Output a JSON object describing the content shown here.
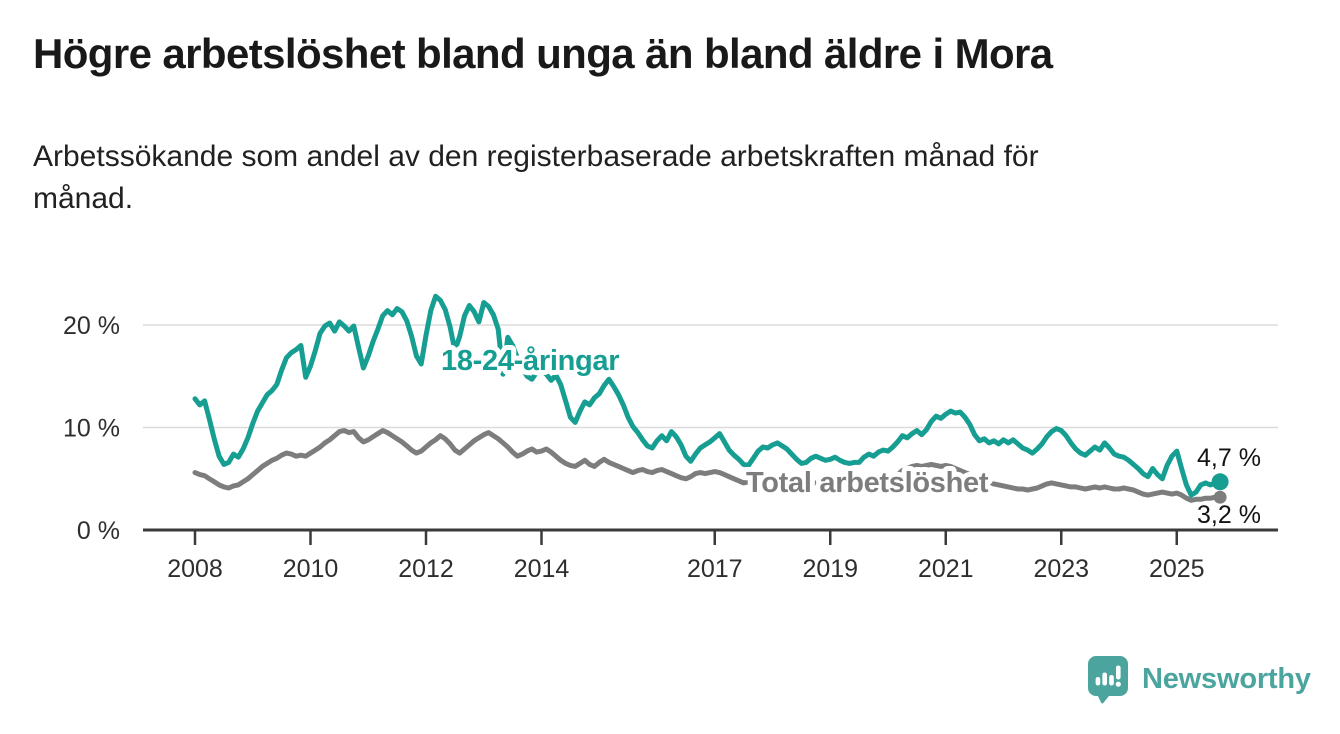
{
  "page": {
    "title": "Högre arbetslöshet bland unga än bland äldre i Mora",
    "subtitle_lines": [
      "Arbetssökande som andel av den registerbaserade arbetskraften månad för",
      "månad."
    ]
  },
  "chart_data": {
    "type": "line",
    "title": "Högre arbetslöshet bland unga än bland äldre i Mora",
    "subtitle": "Arbetssökande som andel av den registerbaserade arbetskraften månad för månad.",
    "unit": "%",
    "grid": true,
    "legend_position": "inline-labels",
    "x_axis": {
      "label": "",
      "range_years": [
        2007.1,
        2026.7
      ],
      "ticks": [
        {
          "label": "2008",
          "year": 2008
        },
        {
          "label": "2010",
          "year": 2010
        },
        {
          "label": "2012",
          "year": 2012
        },
        {
          "label": "2014",
          "year": 2014
        },
        {
          "label": "2017",
          "year": 2017
        },
        {
          "label": "2019",
          "year": 2019
        },
        {
          "label": "2021",
          "year": 2021
        },
        {
          "label": "2023",
          "year": 2023
        },
        {
          "label": "2025",
          "year": 2025
        }
      ]
    },
    "y_axis": {
      "label": "",
      "range": [
        0,
        23.5
      ],
      "ticks": [
        {
          "label": "0 %",
          "value": 0
        },
        {
          "label": "10 %",
          "value": 10
        },
        {
          "label": "20 %",
          "value": 20
        }
      ]
    },
    "series": [
      {
        "name": "18-24-åringar",
        "color": "#179e92",
        "start_year": 2008,
        "frequency": "monthly",
        "end_label": "4,7 %",
        "end_value": 4.7,
        "values": [
          12.8,
          12.2,
          12.6,
          10.8,
          8.9,
          7.2,
          6.4,
          6.6,
          7.4,
          7.1,
          7.9,
          9.0,
          10.4,
          11.6,
          12.4,
          13.2,
          13.6,
          14.2,
          15.6,
          16.8,
          17.3,
          17.6,
          18.0,
          14.9,
          16.0,
          17.5,
          19.2,
          19.9,
          20.2,
          19.4,
          20.3,
          19.9,
          19.4,
          19.9,
          17.8,
          15.8,
          17.0,
          18.4,
          19.6,
          20.9,
          21.4,
          21.0,
          21.6,
          21.3,
          20.4,
          18.9,
          17.0,
          16.2,
          19.0,
          21.4,
          22.8,
          22.4,
          21.5,
          19.8,
          17.5,
          18.9,
          20.9,
          21.9,
          21.3,
          20.3,
          22.2,
          21.8,
          21.0,
          19.6,
          15.2,
          18.8,
          18.0,
          16.8,
          15.8,
          15.0,
          14.7,
          15.4,
          15.6,
          15.2,
          14.6,
          15.1,
          14.2,
          12.6,
          11.0,
          10.5,
          11.6,
          12.5,
          12.2,
          12.9,
          13.3,
          14.1,
          14.7,
          14.0,
          13.2,
          12.2,
          11.0,
          10.1,
          9.5,
          8.8,
          8.2,
          8.0,
          8.7,
          9.2,
          8.7,
          9.6,
          9.1,
          8.3,
          7.2,
          6.7,
          7.4,
          8.0,
          8.3,
          8.6,
          9.0,
          9.4,
          8.6,
          7.8,
          7.3,
          6.9,
          6.4,
          6.3,
          7.0,
          7.7,
          8.1,
          8.0,
          8.3,
          8.5,
          8.2,
          7.9,
          7.4,
          6.9,
          6.5,
          6.6,
          7.0,
          7.2,
          7.0,
          6.8,
          6.9,
          7.1,
          6.8,
          6.6,
          6.5,
          6.6,
          6.6,
          7.1,
          7.4,
          7.2,
          7.6,
          7.8,
          7.7,
          8.1,
          8.6,
          9.2,
          9.0,
          9.4,
          9.7,
          9.3,
          9.8,
          10.6,
          11.1,
          10.9,
          11.3,
          11.6,
          11.4,
          11.5,
          11.0,
          10.3,
          9.3,
          8.7,
          8.9,
          8.5,
          8.7,
          8.4,
          8.8,
          8.5,
          8.8,
          8.4,
          8.0,
          7.8,
          7.5,
          7.9,
          8.4,
          9.1,
          9.6,
          9.9,
          9.7,
          9.2,
          8.5,
          7.9,
          7.5,
          7.3,
          7.7,
          8.1,
          7.8,
          8.5,
          8.0,
          7.4,
          7.2,
          7.1,
          6.8,
          6.4,
          6.0,
          5.5,
          5.2,
          6.0,
          5.4,
          5.0,
          6.3,
          7.2,
          7.7,
          6.0,
          4.4,
          3.4,
          3.7,
          4.4,
          4.6,
          4.4,
          4.6,
          4.7
        ]
      },
      {
        "name": "Total arbetslöshet",
        "color": "#7d7d7d",
        "start_year": 2008,
        "frequency": "monthly",
        "end_label": "3,2 %",
        "end_value": 3.2,
        "values": [
          5.6,
          5.4,
          5.3,
          5.0,
          4.7,
          4.4,
          4.2,
          4.1,
          4.3,
          4.4,
          4.7,
          5.0,
          5.4,
          5.8,
          6.2,
          6.5,
          6.8,
          7.0,
          7.3,
          7.5,
          7.4,
          7.2,
          7.3,
          7.2,
          7.5,
          7.8,
          8.1,
          8.5,
          8.8,
          9.2,
          9.6,
          9.7,
          9.5,
          9.6,
          9.0,
          8.6,
          8.8,
          9.1,
          9.4,
          9.7,
          9.5,
          9.2,
          8.9,
          8.6,
          8.2,
          7.8,
          7.5,
          7.7,
          8.1,
          8.5,
          8.8,
          9.2,
          8.9,
          8.4,
          7.8,
          7.5,
          7.9,
          8.3,
          8.7,
          9.0,
          9.3,
          9.5,
          9.2,
          8.9,
          8.5,
          8.1,
          7.6,
          7.2,
          7.4,
          7.7,
          7.9,
          7.6,
          7.7,
          7.9,
          7.6,
          7.2,
          6.8,
          6.5,
          6.3,
          6.2,
          6.5,
          6.8,
          6.4,
          6.2,
          6.6,
          6.9,
          6.6,
          6.4,
          6.2,
          6.0,
          5.8,
          5.6,
          5.8,
          5.9,
          5.7,
          5.6,
          5.8,
          5.9,
          5.7,
          5.5,
          5.3,
          5.1,
          5.0,
          5.2,
          5.5,
          5.6,
          5.5,
          5.6,
          5.7,
          5.6,
          5.4,
          5.2,
          5.0,
          4.8,
          4.6,
          4.7,
          4.9,
          5.1,
          5.2,
          5.0,
          4.9,
          5.0,
          4.8,
          4.6,
          4.4,
          4.3,
          4.2,
          4.3,
          4.5,
          4.6,
          4.5,
          4.4,
          4.5,
          4.6,
          4.5,
          4.4,
          4.3,
          4.2,
          4.3,
          4.5,
          4.6,
          4.5,
          4.6,
          4.7,
          4.8,
          5.0,
          5.4,
          5.8,
          6.0,
          6.2,
          6.3,
          6.2,
          6.3,
          6.4,
          6.3,
          6.2,
          6.3,
          6.2,
          6.0,
          5.8,
          5.6,
          5.4,
          5.1,
          4.9,
          4.8,
          4.6,
          4.5,
          4.4,
          4.3,
          4.2,
          4.1,
          4.0,
          4.0,
          3.9,
          4.0,
          4.1,
          4.3,
          4.5,
          4.6,
          4.5,
          4.4,
          4.3,
          4.2,
          4.2,
          4.1,
          4.0,
          4.1,
          4.2,
          4.1,
          4.2,
          4.1,
          4.0,
          4.0,
          4.1,
          4.0,
          3.9,
          3.7,
          3.5,
          3.4,
          3.5,
          3.6,
          3.7,
          3.6,
          3.5,
          3.6,
          3.4,
          3.1,
          2.9,
          3.0,
          3.0,
          3.1,
          3.1,
          3.2,
          3.2
        ]
      }
    ]
  },
  "footer": {
    "brand": "Newsworthy",
    "brand_color": "#4ba59e",
    "logo_icon": "bar-chart-speech-bubble-icon"
  }
}
